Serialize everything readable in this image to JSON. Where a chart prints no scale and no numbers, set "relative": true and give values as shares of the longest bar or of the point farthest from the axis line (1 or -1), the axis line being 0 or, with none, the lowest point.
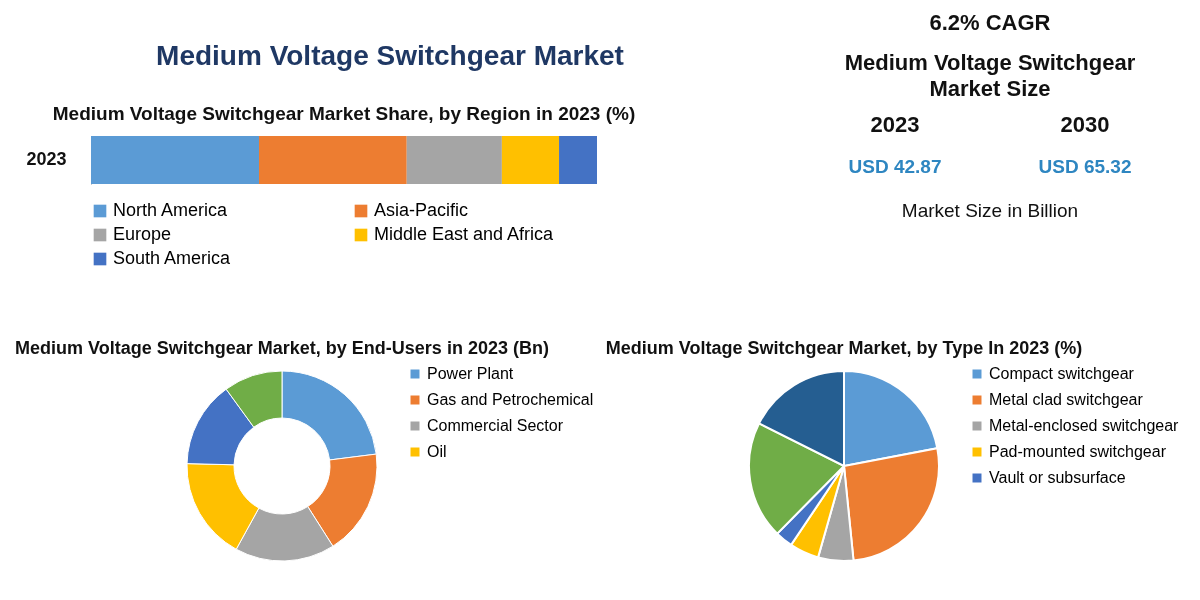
{
  "chart_data": [
    {
      "type": "other",
      "title": "Medium Voltage Switchgear Market"
    },
    {
      "type": "bar",
      "title": "Medium Voltage Switchgear Market Share, by Region in 2023 (%)",
      "orientation": "horizontal",
      "stacked": true,
      "relative": true,
      "legend": "bottom",
      "categories": [
        "2023"
      ],
      "series": [
        {
          "name": "North America",
          "color": "#5b9bd5",
          "values": [
            0.332
          ]
        },
        {
          "name": "Asia-Pacific",
          "color": "#ed7d31",
          "values": [
            0.292
          ]
        },
        {
          "name": "Europe",
          "color": "#a5a5a5",
          "values": [
            0.188
          ]
        },
        {
          "name": "Middle East and Africa",
          "color": "#ffc000",
          "values": [
            0.113
          ]
        },
        {
          "name": "South America",
          "color": "#4472c4",
          "values": [
            0.075
          ]
        }
      ]
    },
    {
      "type": "other",
      "title": "Medium Voltage Switchgear Market Size",
      "annotations": [
        "6.2% CAGR",
        "2023",
        "2030",
        "USD 42.87",
        "USD 65.32",
        "Market Size in Billion"
      ]
    },
    {
      "type": "donut",
      "title": "Medium Voltage Switchgear Market, by End-Users in 2023 (Bn)",
      "legend": "right",
      "categories": [
        "Power Plant",
        "Gas and Petrochemical",
        "Commercial Sector",
        "Oil",
        null,
        null
      ],
      "values": [
        23,
        18,
        17,
        17.4,
        14.6,
        10
      ],
      "colors": [
        "#5b9bd5",
        "#ed7d31",
        "#a5a5a5",
        "#ffc000",
        "#4472c4",
        "#70ad47"
      ]
    },
    {
      "type": "pie",
      "title": "Medium Voltage Switchgear Market, by Type In 2023 (%)",
      "legend": "right",
      "categories": [
        "Compact switchgear",
        "Metal clad switchgear",
        "Metal-enclosed switchgear",
        "Pad-mounted switchgear",
        "Vault or subsurface",
        null,
        null
      ],
      "values": [
        22,
        26.4,
        6,
        5,
        3,
        20,
        17.6
      ],
      "colors": [
        "#5b9bd5",
        "#ed7d31",
        "#a5a5a5",
        "#ffc000",
        "#4472c4",
        "#70ad47",
        "#255e91"
      ]
    }
  ]
}
